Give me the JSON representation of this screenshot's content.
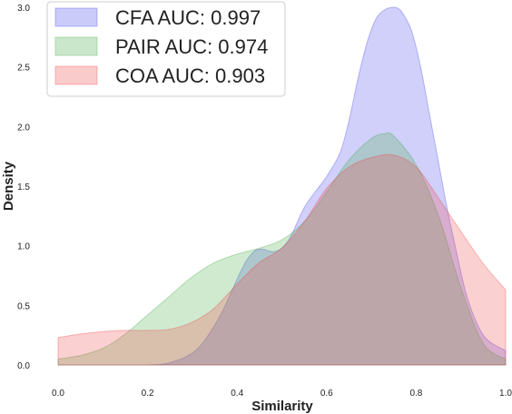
{
  "chart_data": {
    "type": "area",
    "title": "",
    "xlabel": "Similarity",
    "ylabel": "Density",
    "xlim": [
      0.0,
      1.0
    ],
    "ylim": [
      0.0,
      3.0
    ],
    "xticks": [
      "0.0",
      "0.2",
      "0.4",
      "0.6",
      "0.8",
      "1.0"
    ],
    "yticks": [
      "0.0",
      "0.5",
      "1.0",
      "1.5",
      "2.0",
      "2.5",
      "3.0"
    ],
    "grid": false,
    "legend_position": "top-left",
    "series": [
      {
        "name": "CFA AUC: 0.997",
        "color": "#4444ee",
        "x": [
          0.0,
          0.1,
          0.2,
          0.25,
          0.3,
          0.33,
          0.36,
          0.38,
          0.4,
          0.42,
          0.44,
          0.45,
          0.46,
          0.48,
          0.5,
          0.52,
          0.55,
          0.58,
          0.6,
          0.63,
          0.65,
          0.67,
          0.69,
          0.71,
          0.73,
          0.75,
          0.76,
          0.77,
          0.79,
          0.81,
          0.83,
          0.85,
          0.87,
          0.89,
          0.91,
          0.93,
          0.95,
          0.97,
          1.0
        ],
        "y": [
          0.0,
          0.0,
          0.0,
          0.02,
          0.1,
          0.22,
          0.4,
          0.55,
          0.72,
          0.87,
          0.96,
          0.97,
          0.97,
          0.95,
          0.98,
          1.08,
          1.32,
          1.48,
          1.58,
          1.78,
          2.05,
          2.4,
          2.7,
          2.9,
          2.98,
          3.0,
          2.99,
          2.95,
          2.8,
          2.5,
          2.1,
          1.7,
          1.3,
          0.95,
          0.62,
          0.4,
          0.25,
          0.18,
          0.12
        ]
      },
      {
        "name": "PAIR AUC: 0.974",
        "color": "#44aa44",
        "x": [
          0.0,
          0.05,
          0.1,
          0.15,
          0.2,
          0.25,
          0.3,
          0.35,
          0.4,
          0.45,
          0.5,
          0.55,
          0.6,
          0.65,
          0.7,
          0.73,
          0.75,
          0.8,
          0.85,
          0.9,
          0.95,
          1.0
        ],
        "y": [
          0.05,
          0.08,
          0.14,
          0.26,
          0.42,
          0.58,
          0.74,
          0.86,
          0.93,
          0.98,
          1.05,
          1.2,
          1.45,
          1.72,
          1.9,
          1.94,
          1.92,
          1.68,
          1.25,
          0.65,
          0.18,
          0.05
        ]
      },
      {
        "name": "COA AUC: 0.903",
        "color": "#ee4444",
        "x": [
          0.0,
          0.05,
          0.1,
          0.15,
          0.2,
          0.25,
          0.3,
          0.35,
          0.4,
          0.45,
          0.5,
          0.55,
          0.6,
          0.65,
          0.7,
          0.75,
          0.8,
          0.85,
          0.9,
          0.95,
          1.0
        ],
        "y": [
          0.23,
          0.26,
          0.28,
          0.29,
          0.29,
          0.3,
          0.36,
          0.48,
          0.68,
          0.86,
          0.98,
          1.2,
          1.48,
          1.66,
          1.74,
          1.76,
          1.66,
          1.4,
          1.12,
          0.85,
          0.63
        ]
      }
    ]
  }
}
